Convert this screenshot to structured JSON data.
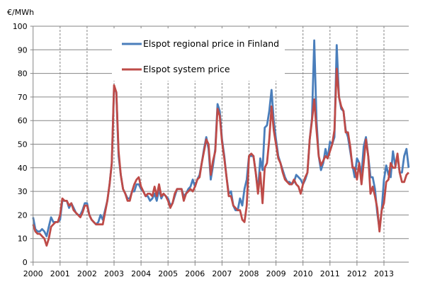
{
  "chart_data": {
    "type": "line",
    "title": "",
    "ylabel": "€/MWh",
    "xlabel": "",
    "ylim": [
      0,
      100
    ],
    "yticks": [
      "0",
      "10",
      "20",
      "30",
      "40",
      "50",
      "60",
      "70",
      "80",
      "90",
      "100"
    ],
    "xticks": [
      "2000",
      "2001",
      "2002",
      "2003",
      "2004",
      "2005",
      "2006",
      "2007",
      "2008",
      "2009",
      "2010",
      "2011",
      "2012",
      "2013"
    ],
    "x_start": "2000-01",
    "x_frequency": "monthly",
    "grid": "horizontal solid, vertical dashed at years",
    "legend_placement": "top-center",
    "series": [
      {
        "name": "Elspot regional price in Finland",
        "color": "#4a7ebb",
        "values": [
          19,
          14,
          13,
          13,
          14,
          13,
          11,
          15,
          19,
          17,
          17,
          17,
          18,
          26,
          26,
          26,
          23,
          25,
          23,
          21,
          20,
          20,
          22,
          25,
          25,
          20,
          18,
          17,
          16,
          17,
          20,
          18,
          22,
          26,
          33,
          42,
          74,
          72,
          45,
          37,
          31,
          29,
          27,
          27,
          30,
          30,
          33,
          33,
          31,
          30,
          28,
          28,
          26,
          27,
          29,
          26,
          31,
          27,
          29,
          28,
          27,
          24,
          25,
          28,
          31,
          31,
          31,
          28,
          29,
          31,
          32,
          35,
          32,
          35,
          37,
          42,
          48,
          53,
          48,
          35,
          41,
          48,
          67,
          64,
          52,
          45,
          36,
          29,
          30,
          24,
          22,
          22,
          27,
          24,
          31,
          35,
          45,
          45,
          45,
          38,
          30,
          44,
          39,
          57,
          58,
          64,
          73,
          60,
          52,
          45,
          42,
          39,
          36,
          34,
          34,
          33,
          34,
          37,
          36,
          35,
          33,
          35,
          38,
          52,
          61,
          94,
          60,
          45,
          39,
          42,
          48,
          44,
          51,
          50,
          53,
          92,
          70,
          65,
          64,
          56,
          53,
          47,
          41,
          36,
          44,
          42,
          37,
          49,
          53,
          45,
          36,
          36,
          31,
          21,
          14,
          22,
          35,
          41,
          37,
          36,
          47,
          41,
          45,
          38,
          38,
          45,
          48,
          40
        ]
      },
      {
        "name": "Elspot system price",
        "color": "#be4b48",
        "values": [
          16,
          13,
          12,
          12,
          11,
          10,
          7,
          10,
          15,
          16,
          17,
          17,
          20,
          27,
          26,
          26,
          24,
          25,
          22,
          21,
          20,
          19,
          21,
          24,
          24,
          20,
          18,
          17,
          16,
          16,
          16,
          16,
          21,
          26,
          33,
          42,
          75,
          72,
          47,
          37,
          31,
          29,
          26,
          26,
          30,
          33,
          35,
          36,
          32,
          30,
          28,
          29,
          29,
          28,
          32,
          28,
          33,
          28,
          29,
          28,
          26,
          23,
          25,
          29,
          31,
          31,
          31,
          26,
          29,
          30,
          31,
          30,
          32,
          35,
          36,
          42,
          47,
          52,
          50,
          37,
          43,
          47,
          65,
          62,
          51,
          44,
          36,
          28,
          28,
          24,
          23,
          22,
          22,
          18,
          17,
          24,
          45,
          46,
          45,
          38,
          29,
          38,
          25,
          40,
          42,
          52,
          66,
          56,
          50,
          44,
          42,
          38,
          35,
          34,
          33,
          33,
          35,
          33,
          32,
          29,
          33,
          36,
          38,
          52,
          60,
          69,
          56,
          45,
          41,
          43,
          45,
          44,
          47,
          50,
          56,
          82,
          70,
          66,
          64,
          55,
          55,
          49,
          40,
          40,
          35,
          42,
          33,
          42,
          52,
          45,
          29,
          32,
          28,
          23,
          13,
          22,
          25,
          34,
          35,
          42,
          40,
          40,
          46,
          38,
          34,
          34,
          37,
          38
        ]
      }
    ]
  }
}
